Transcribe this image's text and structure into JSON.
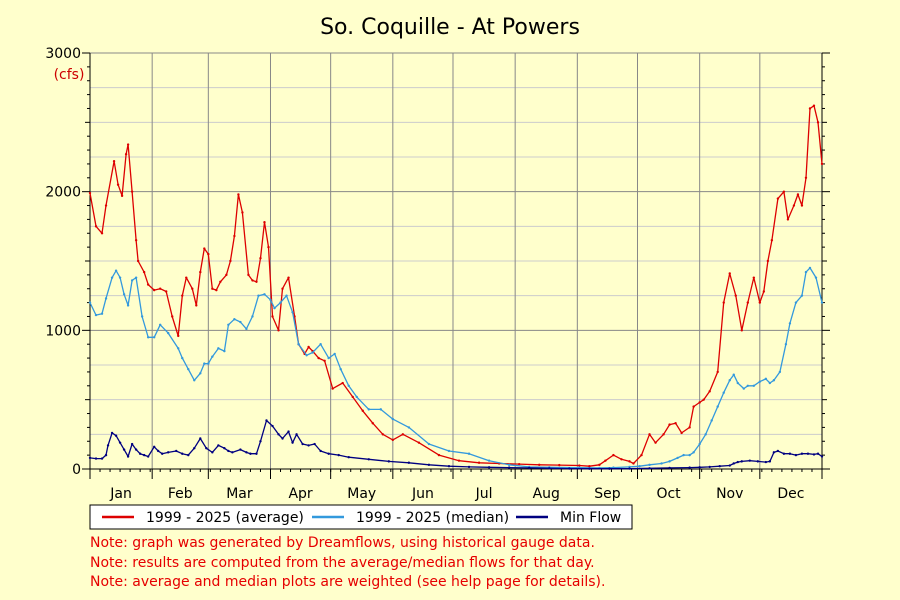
{
  "chart_data": {
    "type": "line",
    "title": "So. Coquille - At Powers",
    "y_unit": "(cfs)",
    "ylim": [
      0,
      3000
    ],
    "yticks": [
      0,
      1000,
      2000,
      3000
    ],
    "xlim": [
      1,
      366
    ],
    "month_labels": [
      "Jan",
      "Feb",
      "Mar",
      "Apr",
      "May",
      "Jun",
      "Jul",
      "Aug",
      "Sep",
      "Oct",
      "Nov",
      "Dec"
    ],
    "month_starts": [
      1,
      32,
      60,
      91,
      121,
      152,
      182,
      213,
      244,
      274,
      305,
      335
    ],
    "grid": true,
    "legend_position": "bottom",
    "series": [
      {
        "name": "1999 - 2025 (average)",
        "color": "#dd0000",
        "x": [
          1,
          4,
          7,
          9,
          13,
          15,
          17,
          19,
          20,
          22,
          24,
          25,
          28,
          30,
          33,
          36,
          39,
          42,
          45,
          47,
          49,
          52,
          54,
          56,
          58,
          60,
          62,
          64,
          66,
          69,
          71,
          73,
          75,
          77,
          80,
          82,
          84,
          86,
          88,
          90,
          92,
          95,
          97,
          100,
          103,
          105,
          108,
          110,
          112,
          115,
          118,
          122,
          127,
          132,
          137,
          142,
          147,
          152,
          157,
          165,
          175,
          185,
          195,
          205,
          215,
          225,
          235,
          245,
          250,
          255,
          258,
          262,
          266,
          270,
          272,
          276,
          280,
          283,
          287,
          290,
          293,
          296,
          300,
          302,
          305,
          307,
          310,
          314,
          317,
          320,
          323,
          326,
          329,
          332,
          335,
          337,
          339,
          341,
          344,
          347,
          349,
          352,
          354,
          356,
          358,
          360,
          362,
          364,
          366
        ],
        "y": [
          1990,
          1750,
          1700,
          1900,
          2220,
          2050,
          1970,
          2270,
          2340,
          2000,
          1650,
          1500,
          1420,
          1330,
          1290,
          1300,
          1280,
          1100,
          960,
          1250,
          1380,
          1300,
          1180,
          1420,
          1590,
          1550,
          1300,
          1290,
          1350,
          1400,
          1500,
          1680,
          1980,
          1850,
          1400,
          1360,
          1350,
          1520,
          1780,
          1600,
          1100,
          1000,
          1300,
          1380,
          1100,
          900,
          830,
          880,
          850,
          800,
          780,
          580,
          620,
          520,
          420,
          330,
          250,
          210,
          250,
          190,
          100,
          60,
          45,
          40,
          35,
          30,
          28,
          25,
          20,
          30,
          60,
          100,
          70,
          55,
          40,
          100,
          250,
          190,
          250,
          320,
          330,
          260,
          300,
          450,
          480,
          500,
          560,
          700,
          1200,
          1410,
          1250,
          1000,
          1200,
          1380,
          1200,
          1280,
          1500,
          1650,
          1950,
          2000,
          1800,
          1900,
          1980,
          1900,
          2100,
          2600,
          2620,
          2500,
          2200
        ]
      },
      {
        "name": "1999 - 2025 (median)",
        "color": "#3399dd",
        "x": [
          1,
          4,
          7,
          9,
          12,
          14,
          16,
          18,
          20,
          22,
          24,
          27,
          30,
          33,
          36,
          40,
          45,
          47,
          50,
          53,
          56,
          58,
          60,
          62,
          65,
          68,
          70,
          73,
          76,
          79,
          82,
          85,
          88,
          91,
          93,
          96,
          99,
          102,
          105,
          109,
          112,
          116,
          120,
          123,
          126,
          130,
          134,
          140,
          146,
          152,
          160,
          170,
          180,
          190,
          200,
          210,
          220,
          230,
          245,
          255,
          262,
          270,
          275,
          280,
          286,
          290,
          294,
          297,
          300,
          302,
          305,
          308,
          311,
          314,
          317,
          320,
          322,
          324,
          327,
          329,
          332,
          335,
          338,
          340,
          342,
          345,
          348,
          350,
          353,
          356,
          358,
          360,
          363,
          366
        ],
        "y": [
          1200,
          1110,
          1120,
          1230,
          1380,
          1430,
          1380,
          1260,
          1180,
          1360,
          1380,
          1100,
          950,
          950,
          1040,
          980,
          870,
          800,
          720,
          640,
          690,
          760,
          760,
          810,
          870,
          850,
          1040,
          1080,
          1060,
          1010,
          1100,
          1250,
          1260,
          1220,
          1160,
          1200,
          1250,
          1130,
          900,
          820,
          840,
          900,
          800,
          830,
          720,
          600,
          520,
          430,
          430,
          360,
          300,
          180,
          130,
          110,
          60,
          30,
          15,
          12,
          10,
          8,
          10,
          15,
          20,
          30,
          40,
          55,
          80,
          100,
          100,
          120,
          180,
          250,
          350,
          450,
          550,
          640,
          680,
          620,
          580,
          600,
          600,
          630,
          650,
          620,
          640,
          700,
          900,
          1050,
          1200,
          1250,
          1420,
          1450,
          1380,
          1200
        ]
      },
      {
        "name": "Min Flow",
        "color": "#000080",
        "x": [
          1,
          4,
          7,
          9,
          10,
          12,
          14,
          16,
          18,
          20,
          22,
          24,
          26,
          28,
          30,
          33,
          35,
          37,
          40,
          44,
          47,
          50,
          53,
          56,
          59,
          62,
          65,
          68,
          70,
          72,
          76,
          79,
          81,
          84,
          86,
          89,
          92,
          95,
          97,
          100,
          102,
          104,
          107,
          110,
          113,
          116,
          120,
          125,
          130,
          140,
          150,
          160,
          170,
          180,
          190,
          200,
          210,
          220,
          230,
          240,
          250,
          260,
          270,
          280,
          290,
          300,
          305,
          310,
          315,
          320,
          322,
          324,
          326,
          330,
          334,
          338,
          340,
          342,
          344,
          347,
          350,
          353,
          356,
          359,
          362,
          364,
          366
        ],
        "y": [
          80,
          75,
          75,
          100,
          170,
          260,
          240,
          190,
          140,
          90,
          180,
          140,
          110,
          100,
          90,
          160,
          130,
          110,
          120,
          130,
          110,
          100,
          150,
          220,
          150,
          120,
          170,
          150,
          130,
          120,
          140,
          120,
          110,
          110,
          200,
          350,
          310,
          250,
          220,
          270,
          190,
          250,
          180,
          170,
          180,
          130,
          110,
          100,
          85,
          70,
          55,
          45,
          30,
          20,
          15,
          12,
          10,
          8,
          5,
          3,
          2,
          2,
          3,
          5,
          8,
          10,
          12,
          15,
          20,
          25,
          40,
          50,
          55,
          60,
          55,
          50,
          55,
          120,
          130,
          110,
          110,
          100,
          110,
          110,
          105,
          110,
          90
        ]
      }
    ]
  },
  "notes": [
    "Note: graph was generated by Dreamflows, using historical gauge data.",
    "Note: results are computed from the average/median flows for that day.",
    "Note: average and median plots are weighted (see help page for details)."
  ]
}
